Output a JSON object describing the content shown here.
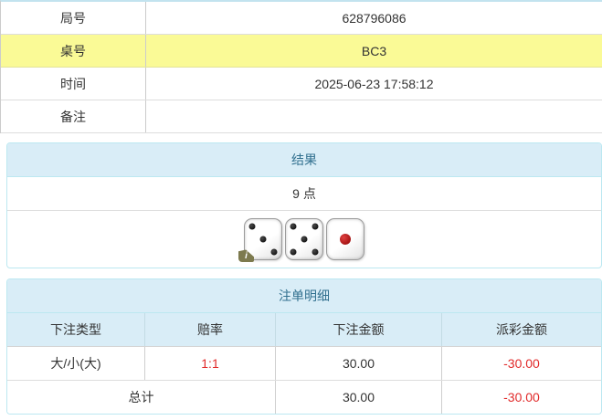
{
  "info_table": {
    "rows": [
      {
        "label": "局号",
        "value": "628796086"
      },
      {
        "label": "桌号",
        "value": "BC3"
      },
      {
        "label": "时间",
        "value": "2025-06-23 17:58:12"
      },
      {
        "label": "备注",
        "value": ""
      }
    ]
  },
  "result_panel": {
    "title": "结果",
    "points": "9 点",
    "dice": [
      3,
      5,
      1
    ],
    "info_badge": "i"
  },
  "bets_panel": {
    "title": "注单明细",
    "columns": {
      "bet_type": "下注类型",
      "odds": "赔率",
      "bet_amount": "下注金额",
      "payout": "派彩金额"
    },
    "rows": [
      {
        "bet_type": "大/小(大)",
        "odds": "1:1",
        "bet_amount": "30.00",
        "payout": "-30.00"
      }
    ],
    "total": {
      "label": "总计",
      "bet_amount": "30.00",
      "payout": "-30.00"
    }
  },
  "colors": {
    "heading_bg": "#d9edf7",
    "heading_text": "#31708f",
    "panel_border": "#bce8f1",
    "highlight_yellow": "#fafa96",
    "negative_red": "#e12b2b",
    "text": "#333333"
  }
}
